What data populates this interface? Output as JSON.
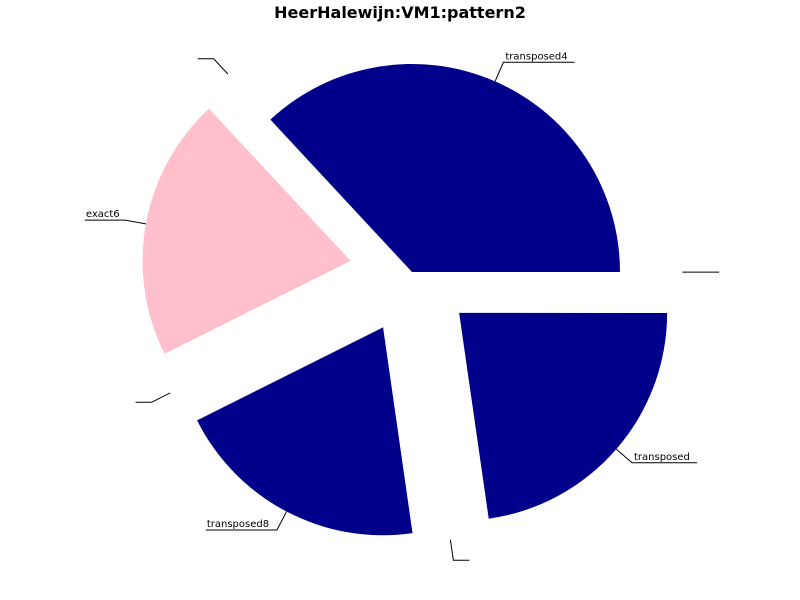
{
  "chart_data": {
    "type": "pie",
    "title": "HeerHalewijn:VM1:pattern2",
    "slices": [
      {
        "label": "transposed4",
        "value": 0.3611,
        "color": "#00008b",
        "exploded": false
      },
      {
        "label": "",
        "value": 0.0001,
        "color": "#00008b",
        "exploded": true
      },
      {
        "label": "exact6",
        "value": 0.2,
        "color": "#ffc0cb",
        "exploded": true
      },
      {
        "label": "",
        "value": 0.0001,
        "color": "#00008b",
        "exploded": true
      },
      {
        "label": "transposed8",
        "value": 0.1944,
        "color": "#00008b",
        "exploded": true
      },
      {
        "label": "",
        "value": 0.0001,
        "color": "#00008b",
        "exploded": true
      },
      {
        "label": "transposed",
        "value": 0.2222,
        "color": "#00008b",
        "exploded": true
      },
      {
        "label": "",
        "value": 0.0001,
        "color": "#00008b",
        "exploded": true
      }
    ],
    "legend": "none"
  }
}
